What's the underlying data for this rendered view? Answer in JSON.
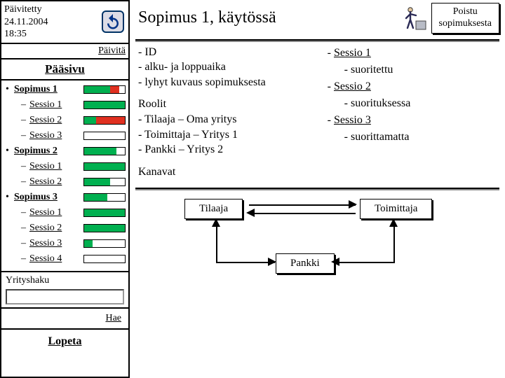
{
  "colors": {
    "green": "#00b050",
    "red": "#e03020"
  },
  "sidebar": {
    "updated_label": "Päivitetty",
    "date": "24.11.2004",
    "time": "18:35",
    "refresh_label": "Päivitä",
    "paasivu": "Pääsivu",
    "yrityshaku": "Yrityshaku",
    "hae": "Hae",
    "lopeta": "Lopeta",
    "tree": [
      {
        "type": "sopimus",
        "label": "Sopimus 1",
        "bar": {
          "w": 60,
          "g": 38,
          "r": 14,
          "wht": 8
        }
      },
      {
        "type": "sessio",
        "label": "Sessio 1",
        "bar": {
          "w": 60,
          "g": 60
        }
      },
      {
        "type": "sessio",
        "label": "Sessio 2",
        "bar": {
          "w": 60,
          "g": 18,
          "r": 42
        }
      },
      {
        "type": "sessio",
        "label": "Sessio 3",
        "bar": {
          "w": 60,
          "wht": 60
        }
      },
      {
        "type": "sopimus",
        "label": "Sopimus 2",
        "bar": {
          "w": 60,
          "g": 48,
          "wht": 12
        }
      },
      {
        "type": "sessio",
        "label": "Sessio 1",
        "bar": {
          "w": 60,
          "g": 60
        }
      },
      {
        "type": "sessio",
        "label": "Sessio 2",
        "bar": {
          "w": 60,
          "g": 38,
          "wht": 22
        }
      },
      {
        "type": "sopimus",
        "label": "Sopimus 3",
        "bar": {
          "w": 60,
          "g": 34,
          "wht": 26
        }
      },
      {
        "type": "sessio",
        "label": "Sessio 1",
        "bar": {
          "w": 60,
          "g": 60
        }
      },
      {
        "type": "sessio",
        "label": "Sessio 2",
        "bar": {
          "w": 60,
          "g": 60
        }
      },
      {
        "type": "sessio",
        "label": "Sessio 3",
        "bar": {
          "w": 60,
          "g": 12,
          "wht": 48
        }
      },
      {
        "type": "sessio",
        "label": "Sessio 4",
        "bar": {
          "w": 60,
          "wht": 60
        }
      }
    ]
  },
  "main": {
    "title": "Sopimus 1, käytössä",
    "exit": "Poistu sopimuksesta",
    "info_left": {
      "l1": "- ID",
      "l2": "- alku- ja loppuaika",
      "l3": "- lyhyt kuvaus sopimuksesta",
      "roolit_h": "Roolit",
      "r1": "- Tilaaja – Oma yritys",
      "r2": "- Toimittaja – Yritys 1",
      "r3": "- Pankki – Yritys 2",
      "kanavat_h": "Kanavat"
    },
    "info_right": {
      "s1": "Sessio 1",
      "s1s": "- suoritettu",
      "s2": "Sessio 2",
      "s2s": "- suorituksessa",
      "s3": "Sessio 3",
      "s3s": "- suorittamatta"
    },
    "diagram": {
      "tilaaja": "Tilaaja",
      "toimittaja": "Toimittaja",
      "pankki": "Pankki"
    }
  }
}
